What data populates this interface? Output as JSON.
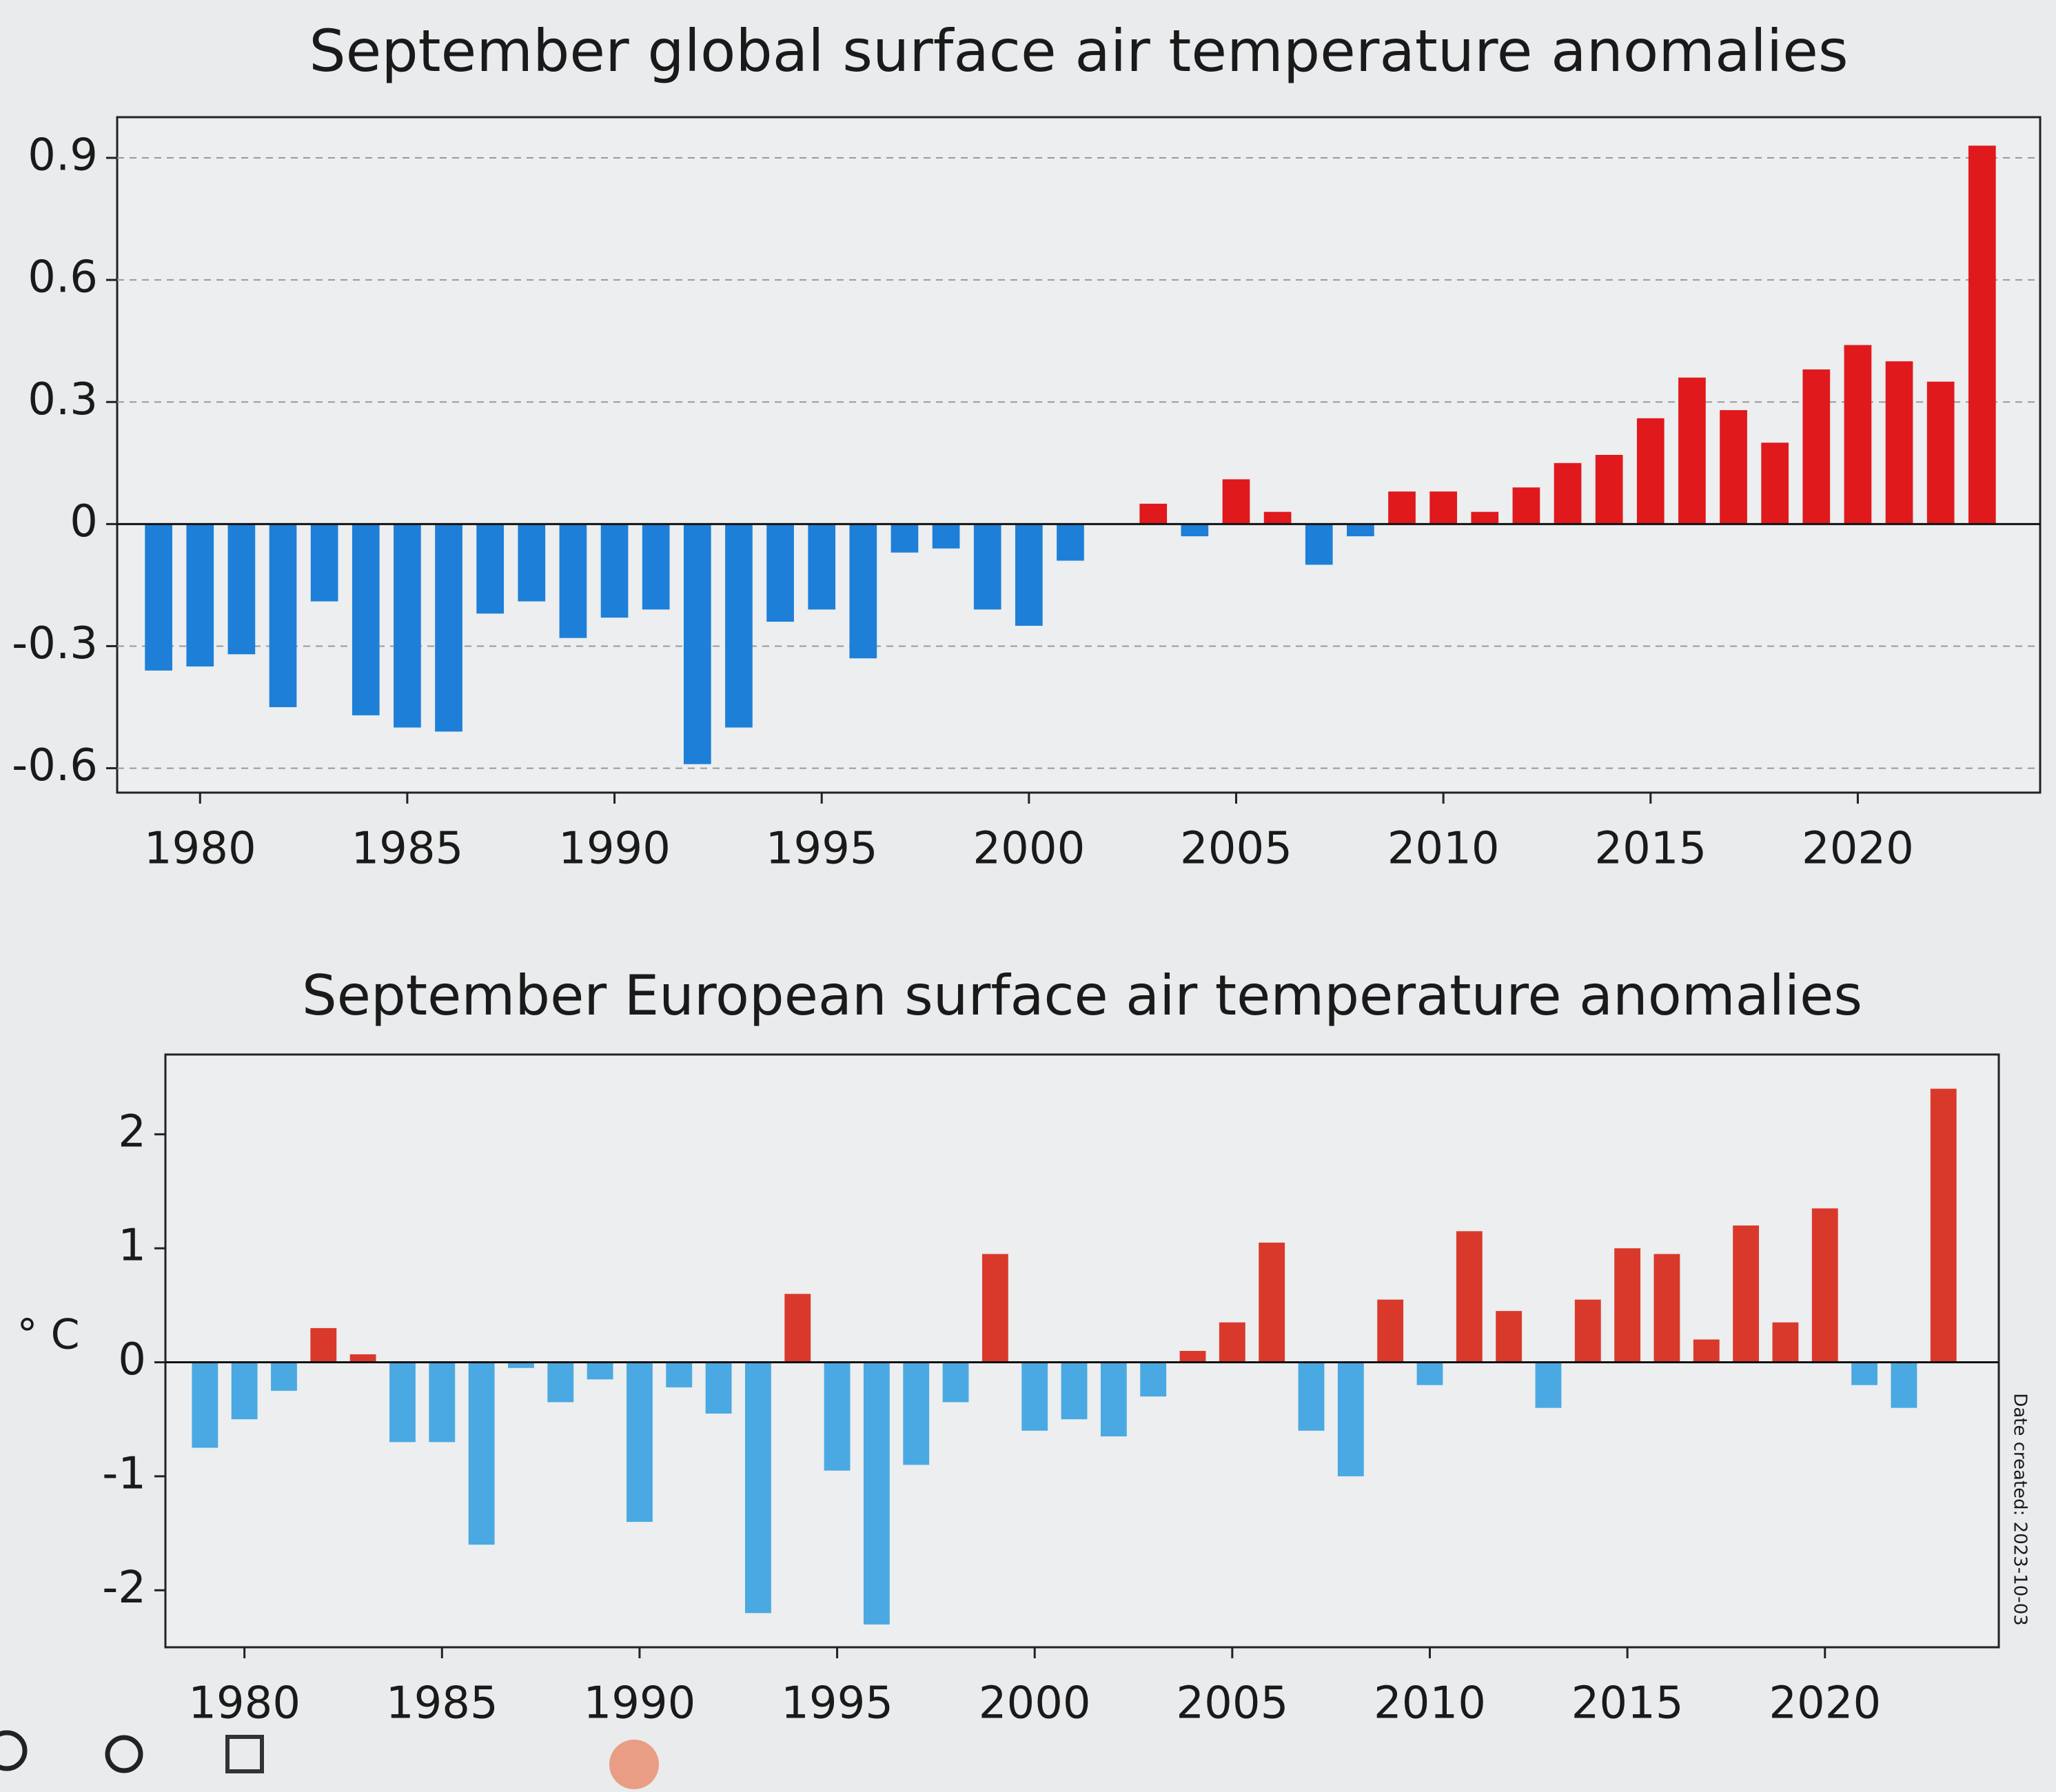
{
  "chart_data": [
    {
      "type": "bar",
      "title": "September global surface air temperature anomalies",
      "x": [
        1979,
        1980,
        1981,
        1982,
        1983,
        1984,
        1985,
        1986,
        1987,
        1988,
        1989,
        1990,
        1991,
        1992,
        1993,
        1994,
        1995,
        1996,
        1997,
        1998,
        1999,
        2000,
        2001,
        2002,
        2003,
        2004,
        2005,
        2006,
        2007,
        2008,
        2009,
        2010,
        2011,
        2012,
        2013,
        2014,
        2015,
        2016,
        2017,
        2018,
        2019,
        2020,
        2021,
        2022,
        2023
      ],
      "values": [
        -0.36,
        -0.35,
        -0.32,
        -0.45,
        -0.19,
        -0.47,
        -0.5,
        -0.51,
        -0.22,
        -0.19,
        -0.28,
        -0.23,
        -0.21,
        -0.59,
        -0.5,
        -0.24,
        -0.21,
        -0.33,
        -0.07,
        -0.06,
        -0.21,
        -0.25,
        -0.09,
        0.0,
        0.05,
        -0.03,
        0.11,
        0.03,
        -0.1,
        -0.03,
        0.08,
        0.08,
        0.03,
        0.09,
        0.15,
        0.17,
        0.26,
        0.36,
        0.28,
        0.2,
        0.38,
        0.44,
        0.4,
        0.35,
        0.93
      ],
      "positive_color": "#e0191c",
      "negative_color": "#1e7fd8",
      "xlim": [
        1978,
        2024.4
      ],
      "xticks": [
        1980,
        1985,
        1990,
        1995,
        2000,
        2005,
        2010,
        2015,
        2020
      ],
      "ylim": [
        -0.66,
        1.0
      ],
      "yticks": [
        -0.6,
        -0.3,
        0,
        0.3,
        0.6,
        0.9
      ],
      "grid": true
    },
    {
      "type": "bar",
      "title": "September European surface air temperature anomalies",
      "y_label": "° C",
      "x": [
        1979,
        1980,
        1981,
        1982,
        1983,
        1984,
        1985,
        1986,
        1987,
        1988,
        1989,
        1990,
        1991,
        1992,
        1993,
        1994,
        1995,
        1996,
        1997,
        1998,
        1999,
        2000,
        2001,
        2002,
        2003,
        2004,
        2005,
        2006,
        2007,
        2008,
        2009,
        2010,
        2011,
        2012,
        2013,
        2014,
        2015,
        2016,
        2017,
        2018,
        2019,
        2020,
        2021,
        2022,
        2023
      ],
      "values": [
        -0.75,
        -0.5,
        -0.25,
        0.3,
        0.07,
        -0.7,
        -0.7,
        -1.6,
        -0.05,
        -0.35,
        -0.15,
        -1.4,
        -0.22,
        -0.45,
        -2.2,
        0.6,
        -0.95,
        -2.3,
        -0.9,
        -0.35,
        0.95,
        -0.6,
        -0.5,
        -0.65,
        -0.3,
        0.1,
        0.35,
        1.05,
        -0.6,
        -1.0,
        0.55,
        -0.2,
        1.15,
        0.45,
        -0.4,
        0.55,
        1.0,
        0.95,
        0.2,
        1.2,
        0.35,
        1.35,
        -0.2,
        -0.4,
        2.4
      ],
      "positive_color": "#d9392b",
      "negative_color": "#4aa9e2",
      "xlim": [
        1978,
        2024.4
      ],
      "xticks": [
        1980,
        1985,
        1990,
        1995,
        2000,
        2005,
        2010,
        2015,
        2020
      ],
      "ylim": [
        -2.5,
        2.7
      ],
      "yticks": [
        -2,
        -1,
        0,
        1,
        2
      ],
      "grid": false,
      "note": "Date created: 2023-10-03"
    }
  ]
}
